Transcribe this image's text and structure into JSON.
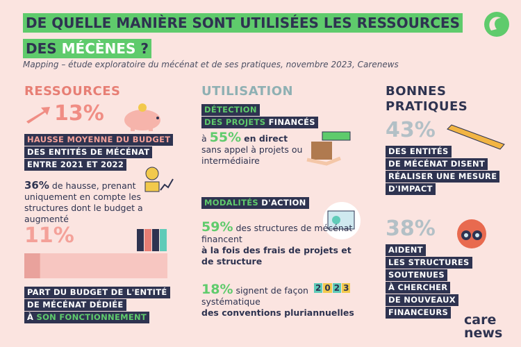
{
  "header": {
    "title_line1": "DE QUELLE MANIÈRE SONT UTILISÉES LES RESSOURCES",
    "title_line2": [
      "DES",
      "MÉCÈNES",
      "?"
    ],
    "subtitle": "Mapping – étude exploratoire du mécénat et de ses pratiques, novembre 2023, Carenews"
  },
  "ressources": {
    "heading": "RESSOURCES",
    "stat1": {
      "figure": "13%",
      "label": [
        "HAUSSE MOYENNE DU BUDGET",
        "DES ENTITÉS DE MÉCÉNAT",
        "ENTRE 2021 ET 2022"
      ]
    },
    "stat2": {
      "figure": "36%",
      "text": "de hausse, prenant uniquement en compte les structures dont le budget a augmenté"
    },
    "stat3": {
      "value": 11,
      "label": "11%",
      "caption": [
        "PART DU BUDGET DE L'ENTITÉ",
        "DE MÉCÉNAT DÉDIÉE",
        "À",
        "SON FONCTIONNEMENT"
      ]
    }
  },
  "utilisation": {
    "heading": "UTILISATION",
    "detection": {
      "tag": [
        "DÉTECTION",
        "DES PROJETS",
        "FINANCÉS"
      ],
      "prefix": "à",
      "figure": "55%",
      "bold": "en direct",
      "text": "sans appel à projets ou intermédiaire"
    },
    "modalites": {
      "tag": [
        "MODALITÉS",
        "D'ACTION"
      ],
      "stat1": {
        "figure": "59%",
        "text": "des structures de mécénat financent",
        "bold": "à la fois des frais de projets et de structure"
      },
      "stat2": {
        "figure": "18%",
        "text": "signent de façon systématique",
        "bold": "des conventions pluriannuelles",
        "icon": [
          "2",
          "0",
          "2",
          "3"
        ]
      }
    }
  },
  "bonnes_pratiques": {
    "heading": [
      "BONNES",
      "PRATIQUES"
    ],
    "stat1": {
      "figure": "43%",
      "label": [
        "DES ENTITÉS",
        "DE MÉCÉNAT DISENT",
        "RÉALISER UNE MESURE",
        "D'IMPACT"
      ]
    },
    "stat2": {
      "figure": "38%",
      "label": [
        "AIDENT",
        "LES STRUCTURES",
        "SOUTENUES",
        "À CHERCHER",
        "DE NOUVEAUX",
        "FINANCEURS"
      ]
    }
  },
  "logo": [
    "care",
    "news"
  ]
}
